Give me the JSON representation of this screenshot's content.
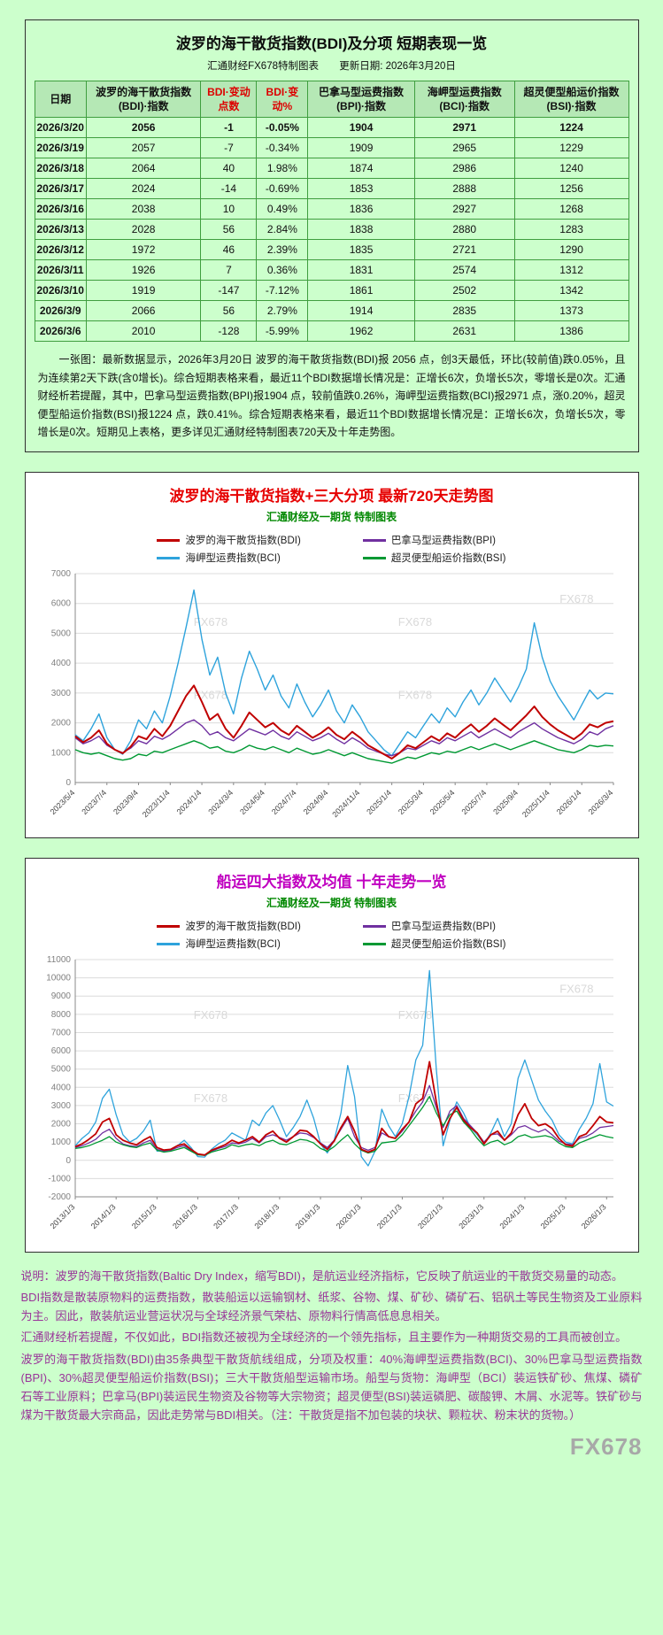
{
  "page": {
    "background": "#ccffcc",
    "watermark": "FX678",
    "footer_watermark": "FX678"
  },
  "table_panel": {
    "title": "波罗的海干散货指数(BDI)及分项  短期表现一览",
    "subtitle_left": "汇通财经FX678特制图表",
    "subtitle_right": "更新日期: 2026年3月20日",
    "table": {
      "headers": [
        {
          "label": "日期",
          "color": "#111111"
        },
        {
          "label": "波罗的海干散货指数(BDI)·指数",
          "color": "#111111"
        },
        {
          "label": "BDI·变动点数",
          "color": "#dd0000"
        },
        {
          "label": "BDI·变动%",
          "color": "#dd0000"
        },
        {
          "label": "巴拿马型运费指数(BPI)·指数",
          "color": "#111111"
        },
        {
          "label": "海岬型运费指数(BCI)·指数",
          "color": "#111111"
        },
        {
          "label": "超灵便型船运价指数(BSI)·指数",
          "color": "#111111"
        }
      ],
      "rows": [
        [
          "2026/3/20",
          "2056",
          "-1",
          "-0.05%",
          "1904",
          "2971",
          "1224"
        ],
        [
          "2026/3/19",
          "2057",
          "-7",
          "-0.34%",
          "1909",
          "2965",
          "1229"
        ],
        [
          "2026/3/18",
          "2064",
          "40",
          "1.98%",
          "1874",
          "2986",
          "1240"
        ],
        [
          "2026/3/17",
          "2024",
          "-14",
          "-0.69%",
          "1853",
          "2888",
          "1256"
        ],
        [
          "2026/3/16",
          "2038",
          "10",
          "0.49%",
          "1836",
          "2927",
          "1268"
        ],
        [
          "2026/3/13",
          "2028",
          "56",
          "2.84%",
          "1838",
          "2880",
          "1283"
        ],
        [
          "2026/3/12",
          "1972",
          "46",
          "2.39%",
          "1835",
          "2721",
          "1290"
        ],
        [
          "2026/3/11",
          "1926",
          "7",
          "0.36%",
          "1831",
          "2574",
          "1312"
        ],
        [
          "2026/3/10",
          "1919",
          "-147",
          "-7.12%",
          "1861",
          "2502",
          "1342"
        ],
        [
          "2026/3/9",
          "2066",
          "56",
          "2.79%",
          "1914",
          "2835",
          "1373"
        ],
        [
          "2026/3/6",
          "2010",
          "-128",
          "-5.99%",
          "1962",
          "2631",
          "1386"
        ]
      ]
    },
    "summary": "一张图：最新数据显示，2026年3月20日 波罗的海干散货指数(BDI)报 2056 点，创3天最低，环比(较前值)跌0.05%，且为连续第2天下跌(含0增长)。综合短期表格来看，最近11个BDI数据增长情况是：正增长6次，负增长5次，零增长是0次。汇通财经析若提醒，其中，巴拿马型运费指数(BPI)报1904 点，较前值跌0.26%，海岬型运费指数(BCI)报2971 点，涨0.20%，超灵便型船运价指数(BSI)报1224 点，跌0.41%。综合短期表格来看，最近11个BDI数据增长情况是：正增长6次，负增长5次，零增长是0次。短期见上表格，更多详见汇通财经特制图表720天及十年走势图。"
  },
  "chart_data": [
    {
      "type": "line",
      "title": "波罗的海干散货指数+三大分项  最新720天走势图",
      "title_color": "#e60000",
      "subtitle": "汇通财经及一期货 特制图表",
      "subtitle_color": "#008800",
      "grid": true,
      "legend_position": "top",
      "ylim": [
        0,
        7000
      ],
      "yticks": [
        0,
        1000,
        2000,
        3000,
        4000,
        5000,
        6000,
        7000
      ],
      "xlabels": [
        "2023/5/4",
        "2023/7/4",
        "2023/9/4",
        "2023/11/4",
        "2024/1/4",
        "2024/3/4",
        "2024/5/4",
        "2024/7/4",
        "2024/9/4",
        "2024/11/4",
        "2025/1/4",
        "2025/3/4",
        "2025/5/4",
        "2025/7/4",
        "2025/9/4",
        "2025/11/4",
        "2026/1/4",
        "2026/3/4"
      ],
      "xlabel_idx": [
        0,
        4,
        8,
        12,
        16,
        20,
        24,
        28,
        32,
        36,
        40,
        44,
        48,
        52,
        56,
        60,
        64,
        68
      ],
      "series": [
        {
          "name": "波罗的海干散货指数(BDI)",
          "color": "#c00000",
          "width": 2,
          "values": [
            1550,
            1350,
            1500,
            1750,
            1300,
            1100,
            980,
            1200,
            1550,
            1450,
            1800,
            1550,
            1900,
            2400,
            2900,
            3250,
            2700,
            2100,
            2300,
            1800,
            1500,
            1900,
            2350,
            2100,
            1850,
            2000,
            1750,
            1600,
            1900,
            1700,
            1500,
            1650,
            1850,
            1600,
            1450,
            1700,
            1500,
            1250,
            1100,
            950,
            800,
            1000,
            1250,
            1150,
            1350,
            1550,
            1400,
            1650,
            1500,
            1750,
            1950,
            1700,
            1900,
            2150,
            1950,
            1750,
            2000,
            2250,
            2550,
            2200,
            1950,
            1750,
            1600,
            1450,
            1650,
            1950,
            1850,
            2000,
            2056
          ]
        },
        {
          "name": "巴拿马型运费指数(BPI)",
          "color": "#7030a0",
          "width": 1.4,
          "values": [
            1500,
            1300,
            1400,
            1550,
            1250,
            1100,
            1000,
            1150,
            1400,
            1300,
            1550,
            1450,
            1600,
            1800,
            2000,
            2100,
            1900,
            1600,
            1700,
            1500,
            1400,
            1600,
            1800,
            1700,
            1600,
            1750,
            1550,
            1450,
            1700,
            1550,
            1400,
            1500,
            1650,
            1450,
            1300,
            1500,
            1350,
            1150,
            1050,
            950,
            900,
            1000,
            1150,
            1100,
            1250,
            1400,
            1300,
            1500,
            1400,
            1550,
            1700,
            1500,
            1650,
            1800,
            1650,
            1500,
            1700,
            1850,
            2000,
            1800,
            1650,
            1500,
            1400,
            1300,
            1450,
            1700,
            1600,
            1800,
            1904
          ]
        },
        {
          "name": "海岬型运费指数(BCI)",
          "color": "#2ea3dc",
          "width": 1.4,
          "values": [
            1600,
            1400,
            1800,
            2300,
            1500,
            1100,
            950,
            1400,
            2100,
            1800,
            2400,
            2000,
            2900,
            4000,
            5200,
            6450,
            4800,
            3600,
            4200,
            3000,
            2300,
            3500,
            4400,
            3800,
            3100,
            3600,
            2900,
            2500,
            3300,
            2700,
            2200,
            2600,
            3100,
            2400,
            2000,
            2600,
            2200,
            1700,
            1400,
            1100,
            900,
            1300,
            1700,
            1500,
            1900,
            2300,
            2000,
            2500,
            2200,
            2700,
            3100,
            2600,
            3000,
            3500,
            3100,
            2700,
            3200,
            3800,
            5350,
            4200,
            3400,
            2900,
            2500,
            2100,
            2600,
            3100,
            2800,
            3000,
            2971
          ]
        },
        {
          "name": "超灵便型船运价指数(BSI)",
          "color": "#009933",
          "width": 1.4,
          "values": [
            1100,
            1000,
            950,
            1000,
            900,
            800,
            750,
            800,
            950,
            900,
            1050,
            1000,
            1100,
            1200,
            1300,
            1400,
            1300,
            1150,
            1200,
            1050,
            1000,
            1100,
            1250,
            1150,
            1100,
            1200,
            1100,
            1000,
            1150,
            1050,
            950,
            1000,
            1100,
            1000,
            900,
            1000,
            900,
            800,
            750,
            700,
            650,
            750,
            850,
            800,
            900,
            1000,
            950,
            1050,
            1000,
            1100,
            1200,
            1100,
            1200,
            1300,
            1200,
            1100,
            1200,
            1300,
            1400,
            1300,
            1200,
            1100,
            1050,
            1000,
            1100,
            1250,
            1200,
            1250,
            1224
          ]
        }
      ]
    },
    {
      "type": "line",
      "title": "船运四大指数及均值 十年走势一览",
      "title_color": "#c000c0",
      "subtitle": "汇通财经及一期货 特制图表",
      "subtitle_color": "#008800",
      "grid": true,
      "legend_position": "top",
      "ylim": [
        -2000,
        11000
      ],
      "yticks": [
        -2000,
        -1000,
        0,
        1000,
        2000,
        3000,
        4000,
        5000,
        6000,
        7000,
        8000,
        9000,
        10000,
        11000
      ],
      "xlabels": [
        "2013/1/3",
        "2014/1/3",
        "2015/1/3",
        "2016/1/3",
        "2017/1/3",
        "2018/1/3",
        "2019/1/3",
        "2020/1/3",
        "2021/1/3",
        "2022/1/3",
        "2023/1/3",
        "2024/1/3",
        "2025/1/3",
        "2026/1/3"
      ],
      "xlabel_idx": [
        0,
        6,
        12,
        18,
        24,
        30,
        36,
        42,
        48,
        54,
        60,
        66,
        72,
        78
      ],
      "series": [
        {
          "name": "波罗的海干散货指数(BDI)",
          "color": "#c00000",
          "width": 1.8,
          "values": [
            750,
            900,
            1150,
            1450,
            2100,
            2300,
            1400,
            1100,
            950,
            850,
            1100,
            1300,
            700,
            560,
            600,
            800,
            900,
            600,
            350,
            290,
            550,
            700,
            850,
            1100,
            950,
            1100,
            1300,
            1000,
            1400,
            1600,
            1200,
            1000,
            1300,
            1650,
            1600,
            1300,
            900,
            600,
            1050,
            1800,
            2400,
            1600,
            600,
            450,
            600,
            1750,
            1300,
            1200,
            1700,
            2100,
            3100,
            3400,
            5400,
            3200,
            1400,
            2300,
            2900,
            2200,
            1800,
            1500,
            900,
            1400,
            1600,
            1100,
            1500,
            2500,
            3100,
            2300,
            1900,
            2000,
            1750,
            1200,
            850,
            780,
            1300,
            1450,
            1900,
            2400,
            2100,
            2056
          ]
        },
        {
          "name": "巴拿马型运费指数(BPI)",
          "color": "#7030a0",
          "width": 1.3,
          "values": [
            700,
            800,
            950,
            1150,
            1500,
            1700,
            1200,
            900,
            800,
            750,
            950,
            1100,
            600,
            500,
            550,
            700,
            800,
            550,
            350,
            300,
            500,
            650,
            750,
            950,
            900,
            1000,
            1200,
            950,
            1300,
            1400,
            1250,
            1100,
            1300,
            1500,
            1450,
            1250,
            950,
            700,
            1100,
            1700,
            2300,
            1300,
            700,
            550,
            700,
            1500,
            1300,
            1200,
            1600,
            2100,
            2700,
            3200,
            4100,
            2900,
            1800,
            2700,
            3000,
            2300,
            1900,
            1500,
            1000,
            1400,
            1450,
            1100,
            1400,
            1800,
            1900,
            1700,
            1550,
            1700,
            1400,
            1050,
            900,
            850,
            1200,
            1300,
            1500,
            1800,
            1850,
            1904
          ]
        },
        {
          "name": "海岬型运费指数(BCI)",
          "color": "#2ea3dc",
          "width": 1.3,
          "values": [
            800,
            1200,
            1500,
            2100,
            3400,
            3900,
            2500,
            1400,
            1000,
            1200,
            1600,
            2200,
            500,
            550,
            600,
            800,
            1100,
            700,
            200,
            180,
            600,
            900,
            1100,
            1500,
            1300,
            1100,
            2200,
            1900,
            2600,
            3000,
            2200,
            1300,
            1800,
            2400,
            3300,
            2300,
            900,
            400,
            1100,
            2600,
            5200,
            3500,
            200,
            -300,
            500,
            2800,
            1900,
            1300,
            2000,
            3500,
            5500,
            6300,
            10400,
            5000,
            800,
            2200,
            3200,
            2600,
            1800,
            1400,
            900,
            1500,
            2300,
            1300,
            2000,
            4500,
            5500,
            4400,
            3300,
            2700,
            2200,
            1400,
            1000,
            900,
            1700,
            2300,
            3100,
            5300,
            3200,
            2971
          ]
        },
        {
          "name": "超灵便型船运价指数(BSI)",
          "color": "#009933",
          "width": 1.3,
          "values": [
            650,
            700,
            800,
            950,
            1100,
            1300,
            1000,
            850,
            750,
            700,
            850,
            950,
            550,
            450,
            500,
            600,
            700,
            500,
            300,
            270,
            450,
            550,
            650,
            850,
            750,
            850,
            900,
            800,
            1000,
            1100,
            900,
            850,
            1000,
            1150,
            1100,
            950,
            650,
            500,
            750,
            1100,
            1400,
            900,
            550,
            400,
            500,
            950,
            1000,
            1050,
            1400,
            1900,
            2400,
            2900,
            3500,
            2600,
            1900,
            2500,
            2700,
            2100,
            1700,
            1200,
            800,
            1000,
            1100,
            850,
            1000,
            1300,
            1400,
            1250,
            1300,
            1350,
            1250,
            950,
            750,
            700,
            950,
            1100,
            1250,
            1400,
            1300,
            1224
          ]
        }
      ]
    }
  ],
  "description": {
    "paragraphs": [
      "说明：波罗的海干散货指数(Baltic Dry Index，缩写BDI)，是航运业经济指标，它反映了航运业的干散货交易量的动态。",
      "BDI指数是散装原物料的运费指数，散装船运以运输钢材、纸浆、谷物、煤、矿砂、磷矿石、铝矾土等民生物资及工业原料为主。因此，散装航运业营运状况与全球经济景气荣枯、原物料行情高低息息相关。",
      "汇通财经析若提醒，不仅如此，BDI指数还被视为全球经济的一个领先指标，且主要作为一种期货交易的工具而被创立。",
      "波罗的海干散货指数(BDI)由35条典型干散货航线组成，分项及权重：40%海岬型运费指数(BCI)、30%巴拿马型运费指数(BPI)、30%超灵便型船运价指数(BSI)；三大干散货船型运输市场。船型与货物：海岬型（BCI）装运铁矿砂、焦煤、磷矿石等工业原料；巴拿马(BPI)装运民生物资及谷物等大宗物资；超灵便型(BSI)装运磷肥、碳酸钾、木屑、水泥等。铁矿砂与煤为干散货最大宗商品，因此走势常与BDI相关。（注：干散货是指不加包装的块状、颗粒状、粉末状的货物。）"
    ]
  }
}
